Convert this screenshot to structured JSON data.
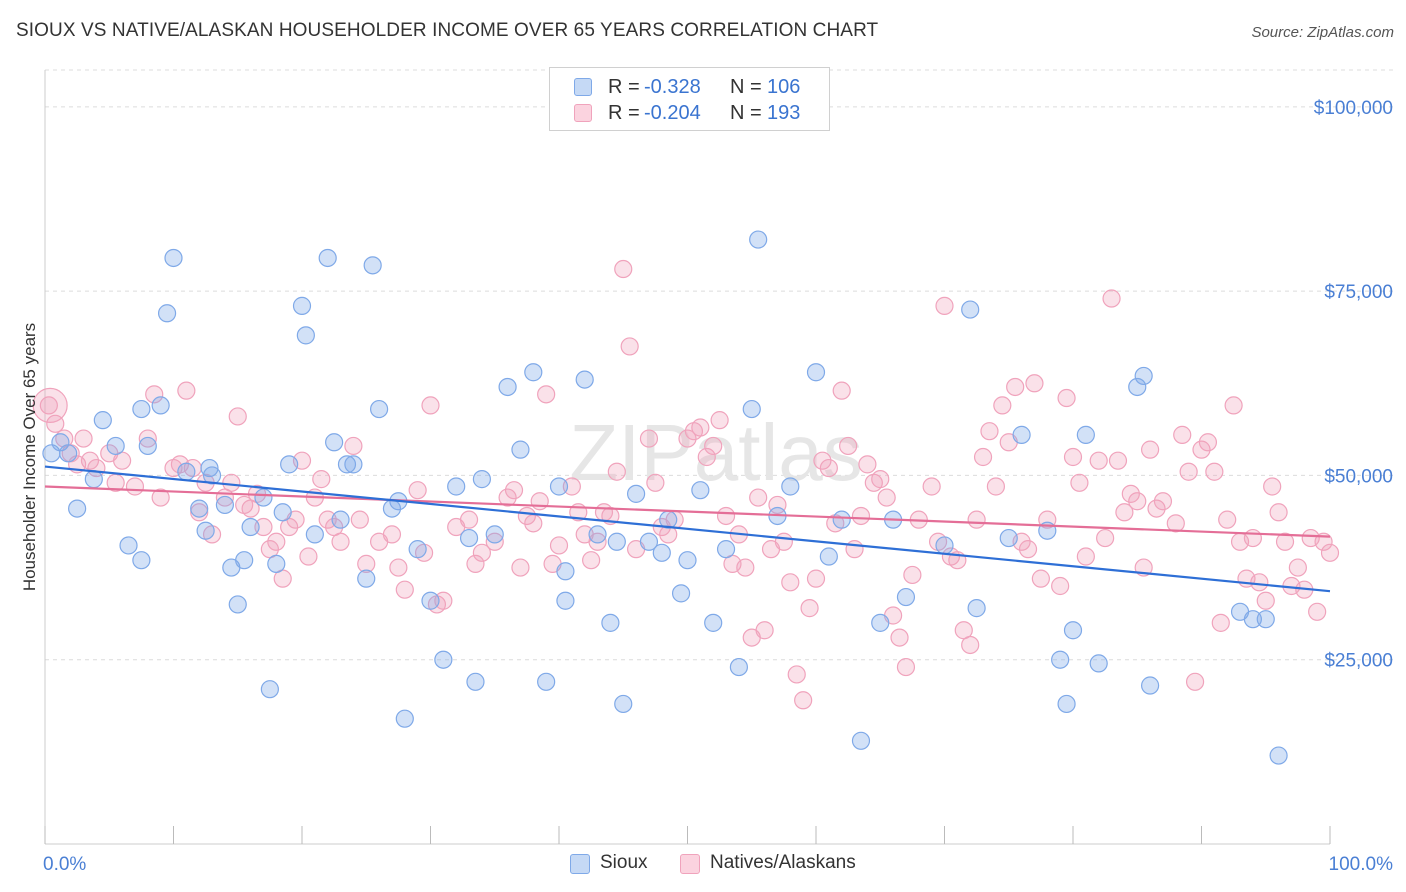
{
  "title": "SIOUX VS NATIVE/ALASKAN HOUSEHOLDER INCOME OVER 65 YEARS CORRELATION CHART",
  "source": "Source: ZipAtlas.com",
  "watermark": "ZIPatlas",
  "legend": {
    "r_label": "R =",
    "n_label": "N =",
    "sioux": {
      "r": "-0.328",
      "n": "106"
    },
    "natives": {
      "r": "-0.204",
      "n": "193"
    }
  },
  "bottom_legend": {
    "sioux": "Sioux",
    "natives": "Natives/Alaskans"
  },
  "chart_data": {
    "type": "scatter",
    "xlabel": "",
    "ylabel": "Householder Income Over 65 years",
    "xlim": [
      0,
      100
    ],
    "ylim": [
      0,
      105000
    ],
    "x_tick_labels": [
      "0.0%",
      "100.0%"
    ],
    "y_ticks": [
      25000,
      50000,
      75000,
      100000
    ],
    "y_tick_labels": [
      "$25,000",
      "$50,000",
      "$75,000",
      "$100,000"
    ],
    "colors": {
      "sioux": "#7fa9e8",
      "sioux_line": "#2e6fd6",
      "natives": "#f0a3bc",
      "natives_line": "#e46e97",
      "axis_text": "#4a7fd4"
    },
    "series": [
      {
        "name": "Sioux",
        "trend": {
          "x": [
            0,
            100
          ],
          "y": [
            51200,
            34300
          ]
        },
        "points": [
          [
            0.5,
            53
          ],
          [
            1.2,
            54.5
          ],
          [
            1.8,
            53
          ],
          [
            2.5,
            45.5
          ],
          [
            3.8,
            49.5
          ],
          [
            4.5,
            57.5
          ],
          [
            5.5,
            54
          ],
          [
            6.5,
            40.5
          ],
          [
            7.5,
            38.5
          ],
          [
            8,
            54
          ],
          [
            7.5,
            59
          ],
          [
            9,
            59.5
          ],
          [
            9.5,
            72
          ],
          [
            10,
            79.5
          ],
          [
            11,
            50.5
          ],
          [
            12,
            45.5
          ],
          [
            12.5,
            42.5
          ],
          [
            12.8,
            51
          ],
          [
            13,
            50
          ],
          [
            14,
            46
          ],
          [
            14.5,
            37.5
          ],
          [
            15,
            32.5
          ],
          [
            15.5,
            38.5
          ],
          [
            16,
            43
          ],
          [
            17,
            47
          ],
          [
            17.5,
            21
          ],
          [
            18,
            38
          ],
          [
            18.5,
            45
          ],
          [
            19,
            51.5
          ],
          [
            20,
            73
          ],
          [
            20.3,
            69
          ],
          [
            21,
            42
          ],
          [
            22,
            79.5
          ],
          [
            22.5,
            54.5
          ],
          [
            23,
            44
          ],
          [
            23.5,
            51.5
          ],
          [
            24,
            51.5
          ],
          [
            25,
            36
          ],
          [
            25.5,
            78.5
          ],
          [
            26,
            59
          ],
          [
            27,
            45.5
          ],
          [
            27.5,
            46.5
          ],
          [
            28,
            17
          ],
          [
            29,
            40
          ],
          [
            30,
            33
          ],
          [
            31,
            25
          ],
          [
            32,
            48.5
          ],
          [
            33,
            41.5
          ],
          [
            33.5,
            22
          ],
          [
            34,
            49.5
          ],
          [
            35,
            42
          ],
          [
            36,
            62
          ],
          [
            37,
            53.5
          ],
          [
            38,
            64
          ],
          [
            39,
            22
          ],
          [
            40,
            48.5
          ],
          [
            40.5,
            33
          ],
          [
            40.5,
            37
          ],
          [
            42,
            63
          ],
          [
            43,
            42
          ],
          [
            44,
            30
          ],
          [
            44.5,
            41
          ],
          [
            45,
            19
          ],
          [
            46,
            47.5
          ],
          [
            47,
            41
          ],
          [
            48,
            39.5
          ],
          [
            48.5,
            44
          ],
          [
            49.5,
            34
          ],
          [
            50,
            38.5
          ],
          [
            51,
            48
          ],
          [
            52,
            30
          ],
          [
            53,
            40
          ],
          [
            54,
            24
          ],
          [
            55,
            59
          ],
          [
            55.5,
            82
          ],
          [
            57,
            44.5
          ],
          [
            58,
            48.5
          ],
          [
            60,
            64
          ],
          [
            61,
            39
          ],
          [
            62,
            44
          ],
          [
            63.5,
            14
          ],
          [
            65,
            30
          ],
          [
            66,
            44
          ],
          [
            67,
            33.5
          ],
          [
            70,
            40.5
          ],
          [
            72,
            72.5
          ],
          [
            72.5,
            32
          ],
          [
            75,
            41.5
          ],
          [
            76,
            55.5
          ],
          [
            78,
            42.5
          ],
          [
            79,
            25
          ],
          [
            79.5,
            19
          ],
          [
            80,
            29
          ],
          [
            81,
            55.5
          ],
          [
            82,
            24.5
          ],
          [
            85,
            62
          ],
          [
            85.5,
            63.5
          ],
          [
            86,
            21.5
          ],
          [
            93,
            31.5
          ],
          [
            94,
            30.5
          ],
          [
            95,
            30.5
          ],
          [
            96,
            12
          ]
        ]
      },
      {
        "name": "Natives/Alaskans",
        "trend": {
          "x": [
            0,
            100
          ],
          "y": [
            48500,
            41700
          ]
        },
        "points": [
          [
            0.3,
            59.5
          ],
          [
            0.8,
            57
          ],
          [
            1.5,
            55
          ],
          [
            2,
            53
          ],
          [
            2.5,
            51.5
          ],
          [
            3,
            55
          ],
          [
            3.5,
            52
          ],
          [
            4,
            51
          ],
          [
            5,
            53
          ],
          [
            5.5,
            49
          ],
          [
            6,
            52
          ],
          [
            7,
            48.5
          ],
          [
            8,
            55
          ],
          [
            8.5,
            61
          ],
          [
            9,
            47
          ],
          [
            10,
            51
          ],
          [
            10.5,
            51.5
          ],
          [
            11,
            61.5
          ],
          [
            11.5,
            51
          ],
          [
            12,
            45
          ],
          [
            12.5,
            49
          ],
          [
            13,
            42
          ],
          [
            14,
            47
          ],
          [
            14.5,
            49
          ],
          [
            15,
            58
          ],
          [
            15.5,
            46
          ],
          [
            16,
            45.5
          ],
          [
            16.5,
            47.5
          ],
          [
            17,
            43
          ],
          [
            17.5,
            40
          ],
          [
            18,
            41
          ],
          [
            18.5,
            36
          ],
          [
            19,
            43
          ],
          [
            19.5,
            44
          ],
          [
            20,
            52
          ],
          [
            20.5,
            39
          ],
          [
            21,
            47
          ],
          [
            21.5,
            49.5
          ],
          [
            22,
            44
          ],
          [
            22.5,
            43
          ],
          [
            23,
            41
          ],
          [
            24,
            54
          ],
          [
            24.5,
            44
          ],
          [
            25,
            38
          ],
          [
            26,
            41
          ],
          [
            27,
            42
          ],
          [
            27.5,
            37.5
          ],
          [
            28,
            34.5
          ],
          [
            29,
            48
          ],
          [
            29.5,
            39.5
          ],
          [
            30,
            59.5
          ],
          [
            30.5,
            32.5
          ],
          [
            31,
            33
          ],
          [
            32,
            43
          ],
          [
            33,
            44
          ],
          [
            33.5,
            38
          ],
          [
            34,
            39.5
          ],
          [
            35,
            41
          ],
          [
            36,
            47
          ],
          [
            36.5,
            48
          ],
          [
            37,
            37.5
          ],
          [
            37.5,
            44.5
          ],
          [
            38,
            43.5
          ],
          [
            38.5,
            46.5
          ],
          [
            39,
            61
          ],
          [
            39.5,
            38
          ],
          [
            40,
            40.5
          ],
          [
            41,
            48.5
          ],
          [
            41.5,
            45
          ],
          [
            42,
            42
          ],
          [
            42.5,
            38.5
          ],
          [
            43,
            41
          ],
          [
            43.5,
            45
          ],
          [
            44,
            44.5
          ],
          [
            44.5,
            50.5
          ],
          [
            45,
            78
          ],
          [
            45.5,
            67.5
          ],
          [
            46,
            40
          ],
          [
            47,
            55
          ],
          [
            47.5,
            49
          ],
          [
            48,
            43
          ],
          [
            48.5,
            42
          ],
          [
            49,
            44
          ],
          [
            50,
            55
          ],
          [
            50.5,
            56
          ],
          [
            51,
            56.5
          ],
          [
            51.5,
            52.5
          ],
          [
            52,
            54
          ],
          [
            52.5,
            57.5
          ],
          [
            53,
            44.5
          ],
          [
            53.5,
            38
          ],
          [
            54,
            42
          ],
          [
            54.5,
            37.5
          ],
          [
            55,
            28
          ],
          [
            55.5,
            47
          ],
          [
            56,
            29
          ],
          [
            56.5,
            40
          ],
          [
            57,
            46
          ],
          [
            57.5,
            41
          ],
          [
            58,
            35.5
          ],
          [
            58.5,
            23
          ],
          [
            59,
            19.5
          ],
          [
            59.5,
            32
          ],
          [
            60,
            36
          ],
          [
            60.5,
            52
          ],
          [
            61,
            51
          ],
          [
            61.5,
            43.5
          ],
          [
            62,
            61.5
          ],
          [
            62.5,
            54
          ],
          [
            63,
            40
          ],
          [
            63.5,
            44.5
          ],
          [
            64,
            51.5
          ],
          [
            64.5,
            49
          ],
          [
            65,
            49.5
          ],
          [
            65.5,
            47
          ],
          [
            66,
            31
          ],
          [
            66.5,
            28
          ],
          [
            67,
            24
          ],
          [
            67.5,
            36.5
          ],
          [
            68,
            44
          ],
          [
            69,
            48.5
          ],
          [
            69.5,
            41
          ],
          [
            70,
            73
          ],
          [
            70.5,
            39
          ],
          [
            71,
            38.5
          ],
          [
            71.5,
            29
          ],
          [
            72,
            27
          ],
          [
            72.5,
            44
          ],
          [
            73,
            52.5
          ],
          [
            73.5,
            56
          ],
          [
            74,
            48.5
          ],
          [
            74.5,
            59.5
          ],
          [
            75,
            54.5
          ],
          [
            75.5,
            62
          ],
          [
            76,
            41
          ],
          [
            76.5,
            40
          ],
          [
            77,
            62.5
          ],
          [
            77.5,
            36
          ],
          [
            78,
            44
          ],
          [
            79,
            35
          ],
          [
            79.5,
            60.5
          ],
          [
            80,
            52.5
          ],
          [
            80.5,
            49
          ],
          [
            81,
            39
          ],
          [
            82,
            52
          ],
          [
            82.5,
            41.5
          ],
          [
            83,
            74
          ],
          [
            83.5,
            52
          ],
          [
            84,
            45
          ],
          [
            84.5,
            47.5
          ],
          [
            85,
            46.5
          ],
          [
            85.5,
            37.5
          ],
          [
            86,
            53.5
          ],
          [
            86.5,
            45.5
          ],
          [
            87,
            46.5
          ],
          [
            88,
            43.5
          ],
          [
            88.5,
            55.5
          ],
          [
            89,
            50.5
          ],
          [
            89.5,
            22
          ],
          [
            90,
            53.5
          ],
          [
            90.5,
            54.5
          ],
          [
            91,
            50.5
          ],
          [
            91.5,
            30
          ],
          [
            92,
            44
          ],
          [
            92.5,
            59.5
          ],
          [
            93,
            41
          ],
          [
            93.5,
            36
          ],
          [
            94,
            41.5
          ],
          [
            94.5,
            35.5
          ],
          [
            95,
            33
          ],
          [
            95.5,
            48.5
          ],
          [
            96,
            45
          ],
          [
            96.5,
            41
          ],
          [
            97,
            35
          ],
          [
            97.5,
            37.5
          ],
          [
            98,
            34.5
          ],
          [
            98.5,
            41.5
          ],
          [
            99,
            31.5
          ],
          [
            99.5,
            41
          ],
          [
            100,
            39.5
          ]
        ]
      }
    ]
  }
}
